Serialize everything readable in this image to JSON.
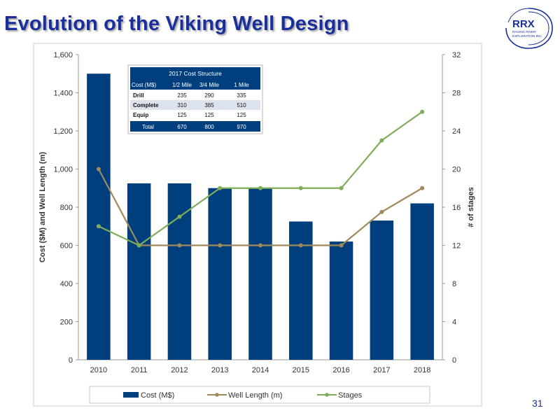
{
  "slide": {
    "title": "Evolution of the Viking Well Design",
    "page_number": "31",
    "logo": {
      "text": "RRX",
      "subtext_line1": "RAGING RIVER",
      "subtext_line2": "EXPLORATION INC."
    }
  },
  "colors": {
    "title": "#1a2f9c",
    "bar": "#003f7d",
    "well_length": "#a0895a",
    "stages": "#7fad5a",
    "table_header": "#003f7d",
    "table_alt_row": "#dde3ec"
  },
  "chart_data": {
    "type": "bar",
    "categories": [
      "2010",
      "2011",
      "2012",
      "2013",
      "2014",
      "2015",
      "2016",
      "2017",
      "2018"
    ],
    "series": [
      {
        "name": "Cost (M$)",
        "type": "bar",
        "axis": "left",
        "values": [
          1500,
          925,
          925,
          900,
          900,
          725,
          620,
          730,
          820
        ]
      },
      {
        "name": "Well Length (m)",
        "type": "line",
        "axis": "left",
        "values": [
          1000,
          600,
          600,
          600,
          600,
          600,
          600,
          775,
          900
        ]
      },
      {
        "name": "Stages",
        "type": "line",
        "axis": "right",
        "values": [
          14,
          12,
          15,
          18,
          18,
          18,
          18,
          23,
          26
        ]
      }
    ],
    "ylabel": "Cost ($M) and Well Length (m)",
    "y2label": "# of stages",
    "ylim": [
      0,
      1600
    ],
    "y2lim": [
      0,
      32
    ],
    "yticks": [
      "0",
      "200",
      "400",
      "600",
      "800",
      "1,000",
      "1,200",
      "1,400",
      "1,600"
    ],
    "y2ticks": [
      "0",
      "4",
      "8",
      "12",
      "16",
      "20",
      "24",
      "28",
      "32"
    ],
    "grid": false,
    "legend_position": "bottom",
    "inset_table": {
      "title": "2017 Cost Structure",
      "headers": [
        "Cost (M$)",
        "1/2 Mile",
        "3/4 Mile",
        "1 Mile"
      ],
      "rows": [
        [
          "Drill",
          "235",
          "290",
          "335"
        ],
        [
          "Complete",
          "310",
          "385",
          "510"
        ],
        [
          "Equip",
          "125",
          "125",
          "125"
        ]
      ],
      "total": [
        "Total",
        "670",
        "800",
        "970"
      ]
    }
  }
}
